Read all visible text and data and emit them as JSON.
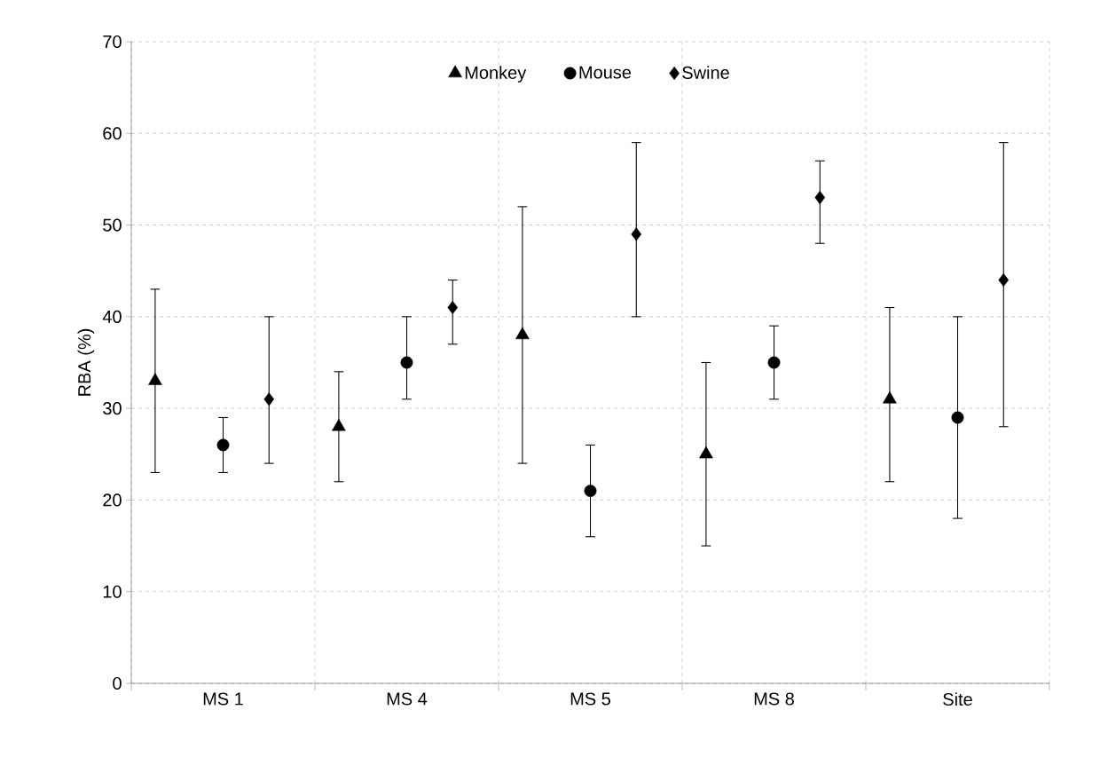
{
  "chart_data": {
    "type": "scatter",
    "ylabel": "RBA (%)",
    "categories": [
      "MS 1",
      "MS 4",
      "MS 5",
      "MS 8",
      "Site"
    ],
    "ylim": [
      0,
      70
    ],
    "yticks": [
      0,
      10,
      20,
      30,
      40,
      50,
      60,
      70
    ],
    "grid": true,
    "legend": "top",
    "series": [
      {
        "name": "Monkey",
        "color": "#000000",
        "marker": "triangle",
        "values": [
          33,
          28,
          38,
          25,
          31
        ],
        "errors": [
          [
            23,
            43
          ],
          [
            22,
            34
          ],
          [
            24,
            52
          ],
          [
            15,
            35
          ],
          [
            22,
            41
          ]
        ]
      },
      {
        "name": "Mouse",
        "color": "#000000",
        "marker": "circle",
        "values": [
          26,
          35,
          21,
          35,
          29
        ],
        "errors": [
          [
            23,
            29
          ],
          [
            31,
            40
          ],
          [
            16,
            26
          ],
          [
            31,
            39
          ],
          [
            18,
            40
          ]
        ]
      },
      {
        "name": "Swine",
        "color": "#000000",
        "marker": "diamond",
        "values": [
          31,
          41,
          49,
          53,
          44
        ],
        "errors": [
          [
            24,
            40
          ],
          [
            37,
            44
          ],
          [
            40,
            59
          ],
          [
            48,
            57
          ],
          [
            28,
            59
          ]
        ]
      }
    ]
  }
}
